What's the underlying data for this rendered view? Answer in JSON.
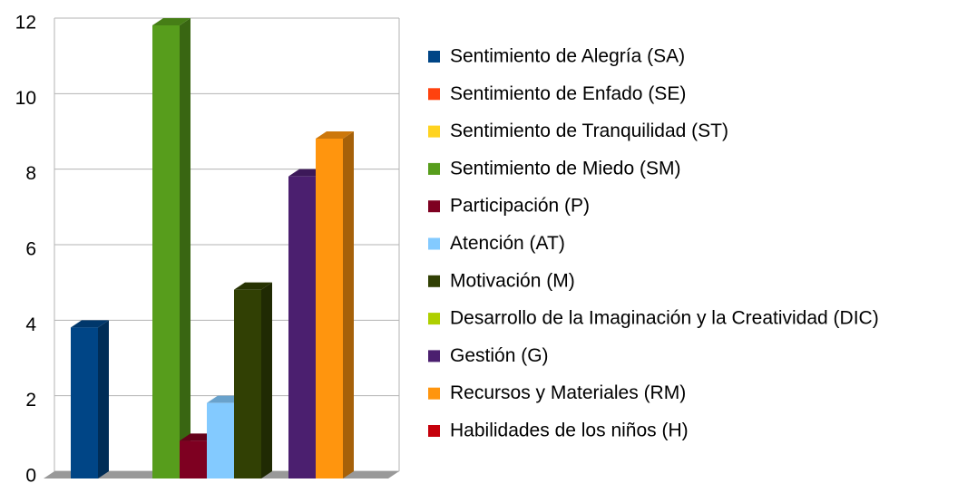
{
  "chart_data": {
    "type": "bar",
    "categories": [
      null
    ],
    "series": [
      {
        "name": "Sentimiento de Alegría (SA)",
        "color": "#004586",
        "values": [
          4
        ]
      },
      {
        "name": "Sentimiento de Enfado (SE)",
        "color": "#ff420e",
        "values": [
          0
        ]
      },
      {
        "name": "Sentimiento de Tranquilidad (ST)",
        "color": "#ffd320",
        "values": [
          0
        ]
      },
      {
        "name": "Sentimiento de Miedo (SM)",
        "color": "#579d1c",
        "values": [
          12
        ]
      },
      {
        "name": "Participación (P)",
        "color": "#7e0021",
        "values": [
          1
        ]
      },
      {
        "name": "Atención (AT)",
        "color": "#83caff",
        "values": [
          2
        ]
      },
      {
        "name": "Motivación (M)",
        "color": "#314004",
        "values": [
          5
        ]
      },
      {
        "name": "Desarrollo de la Imaginación y la Creatividad (DIC)",
        "color": "#aecf00",
        "values": [
          0
        ]
      },
      {
        "name": "Gestión (G)",
        "color": "#4b1f6f",
        "values": [
          8
        ]
      },
      {
        "name": "Recursos y Materiales (RM)",
        "color": "#ff950e",
        "values": [
          9
        ]
      },
      {
        "name": "Habilidades de los niños (H)",
        "color": "#c5000b",
        "values": [
          0
        ]
      }
    ],
    "ylim": [
      0,
      12
    ],
    "yticks": [
      0,
      2,
      4,
      6,
      8,
      10,
      12
    ],
    "grid": true,
    "legend": "right"
  }
}
